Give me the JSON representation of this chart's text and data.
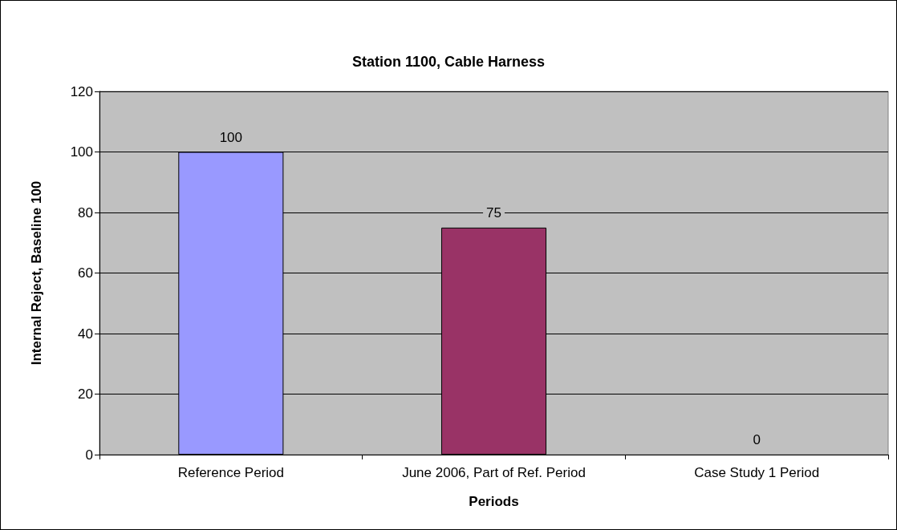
{
  "chart_data": {
    "type": "bar",
    "title": "Station 1100, Cable Harness",
    "xlabel": "Periods",
    "ylabel": "Internal Reject, Baseline 100",
    "categories": [
      "Reference Period",
      "June 2006, Part of Ref. Period",
      "Case Study 1 Period"
    ],
    "values": [
      100,
      75,
      0
    ],
    "colors": [
      "#9999ff",
      "#993366",
      "#ffffcc"
    ],
    "ylim": [
      0,
      120
    ],
    "yticks": [
      0,
      20,
      40,
      60,
      80,
      100,
      120
    ],
    "grid": "y",
    "data_labels": true
  }
}
